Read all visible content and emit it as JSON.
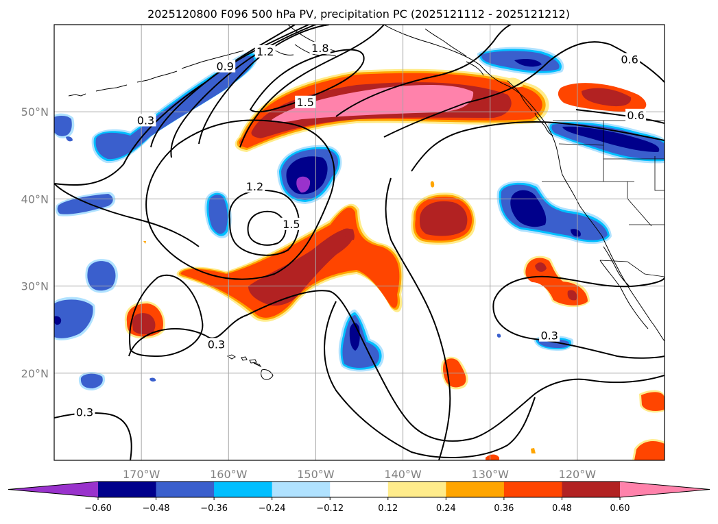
{
  "title": "2025120800 F096 500 hPa PV, precipitation PC (2025121112 - 2025121212)",
  "map": {
    "lon_range": [
      -180,
      -110
    ],
    "lat_range": [
      10,
      60
    ],
    "lon_ticks": [
      {
        "lon": -170,
        "label": "170°W"
      },
      {
        "lon": -160,
        "label": "160°W"
      },
      {
        "lon": -150,
        "label": "150°W"
      },
      {
        "lon": -140,
        "label": "140°W"
      },
      {
        "lon": -130,
        "label": "130°W"
      },
      {
        "lon": -120,
        "label": "120°W"
      }
    ],
    "lat_ticks": [
      {
        "lat": 20,
        "label": "20°N"
      },
      {
        "lat": 30,
        "label": "30°N"
      },
      {
        "lat": 40,
        "label": "40°N"
      },
      {
        "lat": 50,
        "label": "50°N"
      }
    ],
    "grid": true
  },
  "pv_contour_labels": [
    {
      "text": "0.3",
      "lon": -169.5,
      "lat": 48.8
    },
    {
      "text": "0.9",
      "lon": -160.4,
      "lat": 55.0
    },
    {
      "text": "1.2",
      "lon": -155.8,
      "lat": 56.7
    },
    {
      "text": "1.8",
      "lon": -149.5,
      "lat": 57.1
    },
    {
      "text": "1.5",
      "lon": -151.2,
      "lat": 50.9
    },
    {
      "text": "0.6",
      "lon": -114.0,
      "lat": 55.8
    },
    {
      "text": "0.6",
      "lon": -113.3,
      "lat": 49.4
    },
    {
      "text": "1.2",
      "lon": -157.0,
      "lat": 41.2
    },
    {
      "text": "1.5",
      "lon": -152.8,
      "lat": 36.9
    },
    {
      "text": "0.3",
      "lon": -161.4,
      "lat": 23.1
    },
    {
      "text": "0.3",
      "lon": -123.2,
      "lat": 24.1
    },
    {
      "text": "0.3",
      "lon": -176.5,
      "lat": 15.3
    }
  ],
  "colorbar": {
    "levels": [
      "-0.60",
      "-0.48",
      "-0.36",
      "-0.24",
      "-0.12",
      "0.12",
      "0.24",
      "0.36",
      "0.48",
      "0.60"
    ],
    "colors": [
      "#9932cc",
      "#00008b",
      "#3a5fcd",
      "#00bfff",
      "#b0e2ff",
      "#ffffff",
      "#ffec8b",
      "#ffa500",
      "#ff4500",
      "#b22222",
      "#ff82ab"
    ]
  },
  "colors": {
    "purple": "#9932cc",
    "navy": "#00008b",
    "royal": "#3a5fcd",
    "sky": "#00bfff",
    "lightblue": "#b0e2ff",
    "yellow": "#ffec8b",
    "orange": "#ffa500",
    "redorange": "#ff4500",
    "firebrick": "#b22222",
    "pink": "#ff82ab"
  }
}
